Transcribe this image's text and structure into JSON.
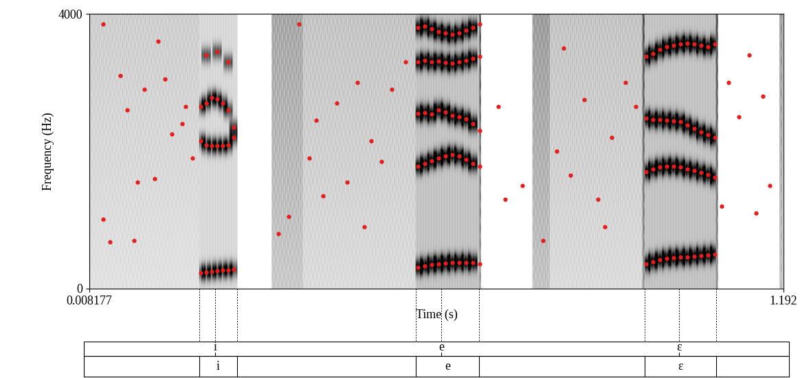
{
  "chart_data": {
    "type": "spectrogram",
    "x_label": "Time (s)",
    "y_label": "Frequency (Hz)",
    "xlim": [
      0.008177,
      1.192
    ],
    "ylim": [
      0,
      4000
    ],
    "xticks": [
      0.008177,
      1.192
    ],
    "yticks": [
      0,
      4000
    ],
    "color": "#e02020",
    "marker": "o",
    "line_style": "none",
    "segments": [
      {
        "start": 0.008177,
        "end": 0.1957,
        "level": 0.25
      },
      {
        "start": 0.1957,
        "end": 0.2602,
        "level": 0.55
      },
      {
        "start": 0.2602,
        "end": 0.3188,
        "level": 0.0
      },
      {
        "start": 0.3188,
        "end": 0.3716,
        "level": 0.45
      },
      {
        "start": 0.3716,
        "end": 0.5649,
        "level": 0.3
      },
      {
        "start": 0.5649,
        "end": 0.6763,
        "level": 0.85
      },
      {
        "start": 0.6763,
        "end": 0.7642,
        "level": 0.0
      },
      {
        "start": 0.7642,
        "end": 0.7934,
        "level": 0.5
      },
      {
        "start": 0.7934,
        "end": 0.9517,
        "level": 0.3
      },
      {
        "start": 0.9517,
        "end": 1.0806,
        "level": 0.85
      },
      {
        "start": 1.0806,
        "end": 1.186,
        "level": 0.0
      },
      {
        "start": 1.186,
        "end": 1.192,
        "level": 0.5
      }
    ],
    "points": {
      "x": [
        0.1981,
        0.2075,
        0.2168,
        0.2262,
        0.2356,
        0.245,
        0.2543,
        0.1981,
        0.2075,
        0.2168,
        0.2262,
        0.2356,
        0.245,
        0.2543,
        0.1981,
        0.2075,
        0.2168,
        0.2262,
        0.2356,
        0.245,
        0.2543,
        0.2075,
        0.2262,
        0.245,
        0.5684,
        0.5801,
        0.5918,
        0.6036,
        0.6153,
        0.627,
        0.6387,
        0.6505,
        0.6622,
        0.6739,
        0.5684,
        0.5801,
        0.5918,
        0.6036,
        0.6153,
        0.627,
        0.6387,
        0.6505,
        0.6622,
        0.6739,
        0.5684,
        0.5801,
        0.5918,
        0.6036,
        0.6153,
        0.627,
        0.6387,
        0.6505,
        0.6622,
        0.6739,
        0.5684,
        0.5801,
        0.5918,
        0.6036,
        0.6153,
        0.627,
        0.6387,
        0.6505,
        0.6622,
        0.6739,
        0.5684,
        0.5801,
        0.5918,
        0.6036,
        0.6153,
        0.627,
        0.6387,
        0.6505,
        0.6622,
        0.6739,
        0.9576,
        0.9693,
        0.981,
        0.9927,
        1.0044,
        1.0162,
        1.0279,
        1.0396,
        1.0513,
        1.063,
        1.0747,
        0.9576,
        0.9693,
        0.981,
        0.9927,
        1.0044,
        1.0162,
        1.0279,
        1.0396,
        1.0513,
        1.063,
        1.0747,
        0.9576,
        0.9693,
        0.981,
        0.9927,
        1.0044,
        1.0162,
        1.0279,
        1.0396,
        1.0513,
        1.063,
        1.0747,
        0.9576,
        0.9693,
        0.981,
        0.9927,
        1.0044,
        1.0162,
        1.0279,
        1.0396,
        1.0513,
        1.063,
        1.0747,
        0.0316,
        0.0433,
        0.0609,
        0.0727,
        0.0902,
        0.102,
        0.1195,
        0.1371,
        0.1488,
        0.1664,
        0.184,
        0.0316,
        0.0844,
        0.1254,
        0.1723,
        0.3305,
        0.3481,
        0.3657,
        0.3833,
        0.4067,
        0.4302,
        0.4477,
        0.4653,
        0.4888,
        0.5064,
        0.5239,
        0.5474,
        0.395,
        0.477,
        0.7056,
        0.7173,
        0.7466,
        0.7818,
        0.8052,
        0.8286,
        0.8521,
        0.8755,
        0.8989,
        0.9224,
        0.94,
        0.8169,
        0.8872,
        1.0982,
        1.1158,
        1.1334,
        1.1568,
        1.1685,
        1.0865,
        1.1451
      ],
      "values": [
        230,
        235,
        245,
        255,
        265,
        270,
        275,
        2150,
        2090,
        2080,
        2080,
        2080,
        2090,
        2200,
        2650,
        2700,
        2780,
        2760,
        2700,
        2600,
        2350,
        3400,
        3450,
        3300,
        310,
        330,
        350,
        360,
        370,
        375,
        380,
        380,
        375,
        360,
        1780,
        1820,
        1860,
        1900,
        1930,
        1950,
        1930,
        1880,
        1820,
        1780,
        2550,
        2560,
        2540,
        2600,
        2570,
        2520,
        2500,
        2470,
        2400,
        2300,
        3300,
        3320,
        3300,
        3310,
        3290,
        3280,
        3300,
        3320,
        3350,
        3380,
        3800,
        3820,
        3780,
        3740,
        3720,
        3700,
        3720,
        3760,
        3800,
        3850,
        360,
        390,
        420,
        440,
        450,
        455,
        460,
        470,
        480,
        490,
        500,
        1700,
        1740,
        1770,
        1780,
        1780,
        1770,
        1740,
        1720,
        1690,
        1660,
        1620,
        2480,
        2460,
        2460,
        2450,
        2440,
        2430,
        2380,
        2330,
        2280,
        2240,
        2200,
        3380,
        3420,
        3480,
        3520,
        3540,
        3560,
        3570,
        3560,
        3540,
        3520,
        3560,
        1010,
        680,
        3100,
        2600,
        1550,
        2900,
        1600,
        3050,
        2250,
        2400,
        1900,
        3850,
        700,
        3600,
        2650,
        800,
        1050,
        3850,
        1900,
        1350,
        2700,
        1550,
        3000,
        2150,
        1850,
        2900,
        3300,
        2450,
        900,
        2650,
        1300,
        1500,
        700,
        2000,
        1650,
        2750,
        1300,
        2200,
        3000,
        2650,
        3500,
        900,
        3000,
        2500,
        3400,
        2800,
        1500,
        1200,
        1100
      ]
    },
    "tiers": [
      {
        "points": [
          {
            "time": 0.2227,
            "label": "i"
          },
          {
            "time": 0.6083,
            "label": "e"
          },
          {
            "time": 1.0138,
            "label": "ɛ"
          }
        ]
      },
      {
        "intervals": [
          {
            "start": 0.1957,
            "end": 0.2602,
            "label": "i"
          },
          {
            "start": 0.5649,
            "end": 0.6728,
            "label": "e"
          },
          {
            "start": 0.9552,
            "end": 1.0771,
            "label": "ɛ"
          }
        ]
      }
    ]
  }
}
